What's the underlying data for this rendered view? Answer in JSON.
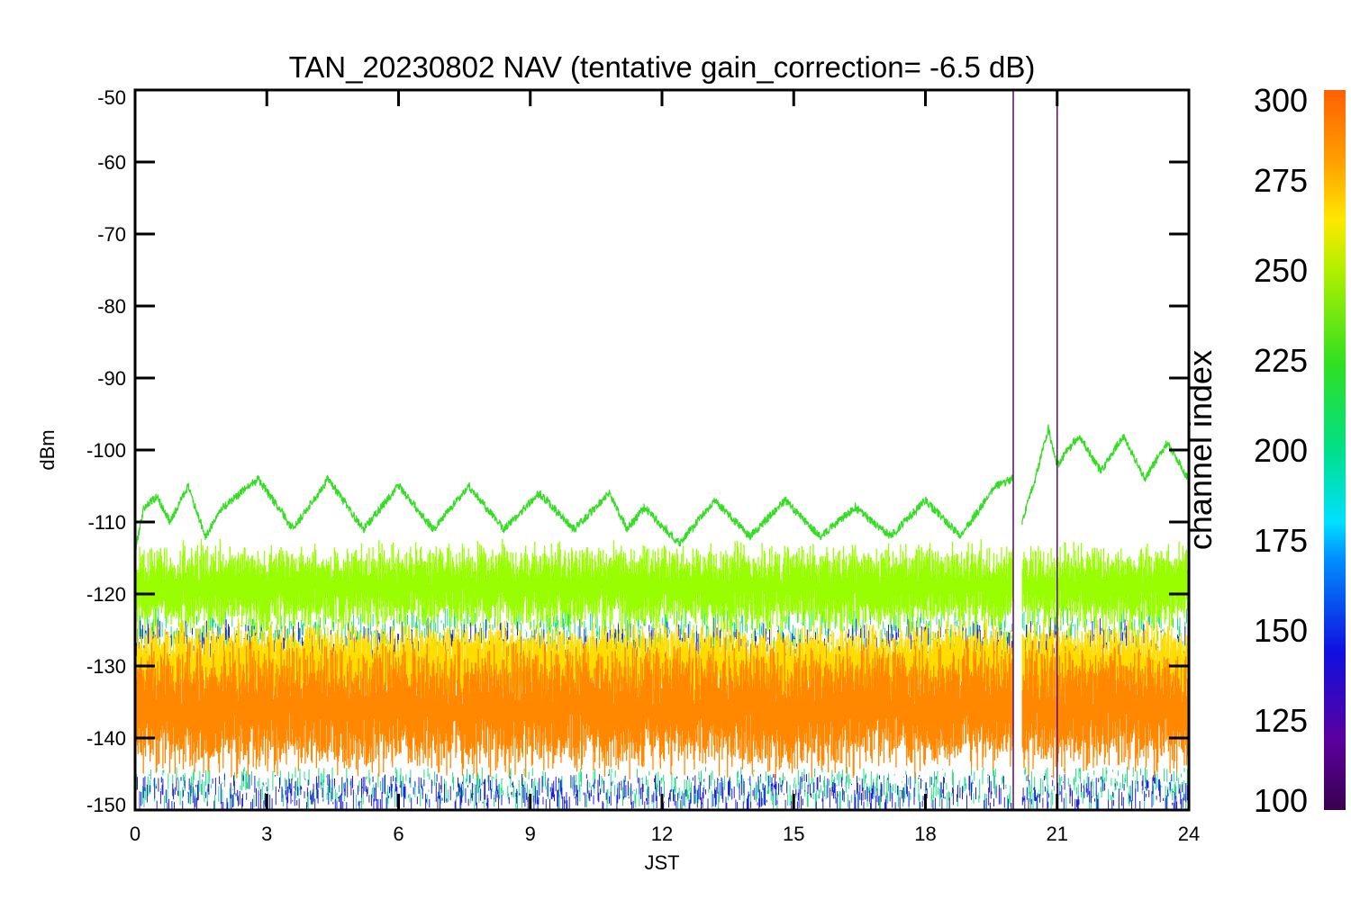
{
  "chart_data": {
    "type": "line",
    "title": "TAN_20230802 NAV (tentative gain_correction= -6.5 dB)",
    "xlabel": "JST",
    "ylabel": "dBm",
    "xlim": [
      0,
      24
    ],
    "ylim": [
      -150,
      -50
    ],
    "x_ticks": [
      0,
      3,
      6,
      9,
      12,
      15,
      18,
      21,
      24
    ],
    "y_ticks": [
      -50,
      -60,
      -70,
      -80,
      -90,
      -100,
      -110,
      -120,
      -130,
      -140,
      -150
    ],
    "colorbar": {
      "label": "channel index",
      "range": [
        100,
        300
      ],
      "ticks": [
        100,
        125,
        150,
        175,
        200,
        225,
        250,
        275,
        300
      ],
      "colormap": "rainbow"
    },
    "data_gap": [
      20.0,
      20.2
    ],
    "vertical_lines": [
      {
        "x": 20.0,
        "color": "#5a0a6a",
        "y_range": [
          -150,
          -50
        ]
      },
      {
        "x": 21.0,
        "color": "#5a0a6a",
        "y_range": [
          -150,
          -52
        ]
      }
    ],
    "series": [
      {
        "channel": 248,
        "color": "#33dd22",
        "description_points": {
          "x": [
            0.0,
            0.2,
            0.5,
            0.8,
            1.2,
            1.6,
            2.0,
            2.8,
            3.6,
            4.4,
            5.2,
            6.0,
            6.8,
            7.6,
            8.4,
            9.2,
            10.0,
            10.8,
            11.2,
            11.6,
            12.4,
            13.2,
            14.0,
            14.8,
            15.6,
            16.4,
            17.2,
            18.0,
            18.8,
            19.6,
            20.0,
            20.2,
            20.5,
            20.8,
            21.0,
            21.5,
            22.0,
            22.5,
            23.0,
            23.5,
            24.0
          ],
          "y": [
            -114,
            -108,
            -106.5,
            -110,
            -105,
            -112,
            -108,
            -104,
            -111,
            -104,
            -111,
            -105,
            -111,
            -105,
            -111,
            -106,
            -111,
            -106,
            -111,
            -108,
            -113,
            -107,
            -112,
            -107,
            -112,
            -108,
            -112,
            -107,
            -112,
            -105,
            -104,
            -110,
            -104,
            -97,
            -102,
            -98,
            -103,
            -98,
            -104,
            -99,
            -104
          ]
        },
        "oscillation_period_hours": 0.75,
        "oscillation_amplitude_db": 3.5
      },
      {
        "channel": 260,
        "color": "#99ff00",
        "mean": -119,
        "spread": [
          -124,
          -114
        ]
      },
      {
        "channel": 275,
        "color": "#ffdd00",
        "mean": -130,
        "spread": [
          -134,
          -124
        ]
      },
      {
        "channel": 290,
        "color": "#ff8800",
        "mean": -136,
        "spread": [
          -143,
          -128
        ]
      },
      {
        "channel": 200,
        "color": "#22dd88",
        "mean": -136,
        "spread": [
          -148,
          -124
        ]
      },
      {
        "channel": 140,
        "color": "#2222dd",
        "mean": -136,
        "spread": [
          -149,
          -126
        ]
      }
    ]
  }
}
